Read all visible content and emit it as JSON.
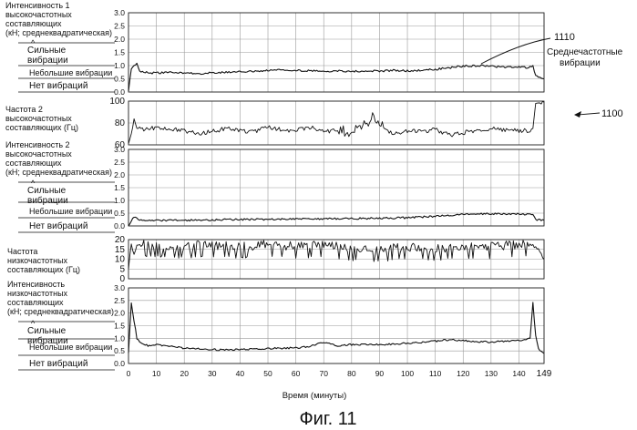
{
  "figure": {
    "caption": "Фиг. 11",
    "xlabel": "Время (минуты)",
    "x_ticks": [
      "0",
      "10",
      "20",
      "30",
      "40",
      "50",
      "60",
      "70",
      "80",
      "90",
      "100",
      "110",
      "120",
      "130",
      "140",
      "149"
    ],
    "ref_1110": "1110",
    "ref_1110_label": [
      "Среднечастотные",
      "вибрации"
    ],
    "ref_1100": "1100"
  },
  "panels": [
    {
      "label_lines": [
        "Интенсивность 1",
        "высокочастотных",
        "составляющих",
        "(кН; среднеквадратическая)"
      ],
      "strong": [
        "Сильные",
        "вибрации"
      ],
      "small": "Небольшие вибрации",
      "none": "Нет вибраций"
    },
    {
      "label_lines": [
        "Частота 2",
        "высокочастотных",
        "составляющих (Гц)"
      ]
    },
    {
      "label_lines": [
        "Интенсивность 2",
        "высокочастотных",
        "составляющих",
        "(кН; среднеквадратическая)"
      ],
      "strong": [
        "Сильные",
        "вибрации"
      ],
      "small": "Небольшие вибрации",
      "none": "Нет вибраций"
    },
    {
      "label_lines": [
        "Частота",
        "низкочастотных",
        "составляющих (Гц)"
      ]
    },
    {
      "label_lines": [
        "Интенсивность",
        "низкочастотных",
        "составляющих",
        "(кН; среднеквадратическая)"
      ],
      "strong": [
        "Сильные",
        "вибрации"
      ],
      "small": "Небольшие вибрации",
      "none": "Нет вибраций"
    }
  ],
  "chart_data": [
    {
      "type": "line",
      "y_ticks": [
        "0.0",
        "0.5",
        "1.0",
        "1.5",
        "2.0",
        "2.5",
        "3.0"
      ],
      "ylim": [
        0,
        3
      ],
      "xlim": [
        0,
        149
      ],
      "x": [
        0,
        1,
        2,
        3,
        4,
        6,
        8,
        10,
        15,
        20,
        25,
        30,
        35,
        40,
        45,
        50,
        55,
        60,
        65,
        70,
        75,
        80,
        85,
        90,
        95,
        100,
        105,
        110,
        115,
        120,
        125,
        130,
        135,
        140,
        143,
        145,
        146,
        147,
        149
      ],
      "y": [
        0.0,
        0.9,
        1.0,
        1.1,
        0.8,
        0.75,
        0.72,
        0.72,
        0.74,
        0.72,
        0.7,
        0.72,
        0.74,
        0.76,
        0.78,
        0.82,
        0.84,
        0.83,
        0.8,
        0.79,
        0.8,
        0.78,
        0.8,
        0.79,
        0.82,
        0.8,
        0.82,
        0.86,
        0.92,
        0.98,
        1.0,
        0.97,
        0.94,
        0.95,
        0.93,
        0.98,
        0.6,
        0.55,
        0.5
      ]
    },
    {
      "type": "line",
      "y_ticks": [
        "60",
        "80",
        "100"
      ],
      "ylim": [
        60,
        100
      ],
      "xlim": [
        0,
        149
      ],
      "x": [
        0,
        1,
        2,
        3,
        4,
        6,
        8,
        10,
        15,
        20,
        25,
        30,
        35,
        40,
        45,
        50,
        55,
        60,
        65,
        70,
        75,
        80,
        85,
        88,
        90,
        92,
        95,
        100,
        105,
        110,
        115,
        120,
        125,
        130,
        135,
        140,
        144,
        145,
        146,
        147,
        149
      ],
      "y": [
        60,
        70,
        84,
        76,
        75,
        74,
        75,
        76,
        74,
        73,
        70,
        72,
        75,
        73,
        72,
        76,
        74,
        73,
        76,
        72,
        74,
        71,
        78,
        86,
        80,
        74,
        70,
        73,
        72,
        74,
        69,
        71,
        73,
        75,
        74,
        73,
        73,
        75,
        98,
        99,
        99
      ]
    },
    {
      "type": "line",
      "y_ticks": [
        "0.0",
        "0.5",
        "1.0",
        "1.5",
        "2.0",
        "2.5",
        "3.0"
      ],
      "ylim": [
        0,
        3
      ],
      "xlim": [
        0,
        149
      ],
      "x": [
        0,
        1,
        2,
        3,
        4,
        6,
        8,
        10,
        20,
        30,
        40,
        50,
        60,
        70,
        80,
        90,
        100,
        110,
        120,
        130,
        140,
        145,
        146,
        149
      ],
      "y": [
        0.0,
        0.2,
        0.35,
        0.28,
        0.22,
        0.2,
        0.2,
        0.21,
        0.22,
        0.24,
        0.25,
        0.26,
        0.27,
        0.28,
        0.29,
        0.3,
        0.32,
        0.38,
        0.45,
        0.48,
        0.46,
        0.47,
        0.25,
        0.22
      ]
    },
    {
      "type": "line",
      "y_ticks": [
        "0",
        "5",
        "10",
        "15",
        "20"
      ],
      "ylim": [
        0,
        20
      ],
      "xlim": [
        0,
        149
      ],
      "x": [
        0,
        1,
        2,
        3,
        5,
        10,
        20,
        30,
        40,
        50,
        60,
        70,
        80,
        90,
        100,
        110,
        120,
        130,
        140,
        145,
        147,
        149
      ],
      "y": [
        5,
        18,
        12,
        17,
        17,
        17,
        16,
        17,
        16,
        17,
        16,
        17,
        15,
        14,
        16,
        15,
        16,
        16,
        17,
        17,
        15,
        10
      ]
    },
    {
      "type": "line",
      "y_ticks": [
        "0.0",
        "0.5",
        "1.0",
        "1.5",
        "2.0",
        "2.5",
        "3.0"
      ],
      "ylim": [
        0,
        3
      ],
      "xlim": [
        0,
        149
      ],
      "x": [
        0,
        1,
        2,
        3,
        5,
        8,
        10,
        15,
        20,
        30,
        40,
        50,
        60,
        65,
        70,
        75,
        80,
        90,
        100,
        110,
        115,
        120,
        130,
        135,
        140,
        144,
        145,
        146,
        147,
        149
      ],
      "y": [
        0.4,
        2.4,
        1.7,
        1.0,
        0.75,
        0.7,
        0.75,
        0.7,
        0.6,
        0.55,
        0.55,
        0.6,
        0.62,
        0.68,
        0.85,
        0.7,
        0.75,
        0.75,
        0.8,
        0.88,
        0.95,
        0.9,
        0.85,
        0.88,
        0.92,
        1.0,
        2.4,
        1.1,
        0.6,
        0.4
      ]
    }
  ]
}
